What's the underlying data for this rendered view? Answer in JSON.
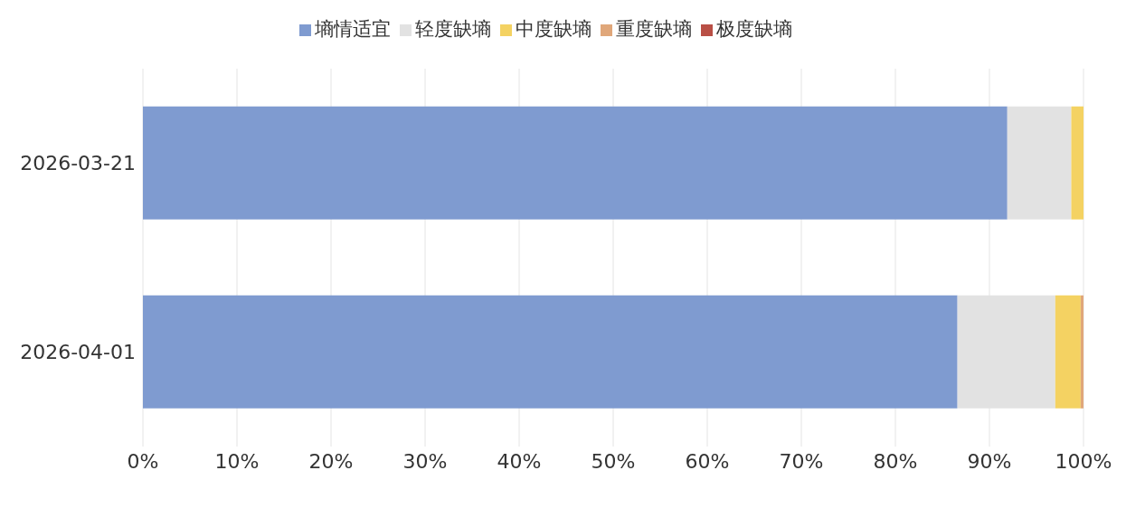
{
  "chart_data": {
    "type": "bar",
    "orientation": "horizontal",
    "stacked": true,
    "categories": [
      "2026-03-21",
      "2026-04-01"
    ],
    "series": [
      {
        "name": "墒情适宜",
        "color": "#7f9bd0",
        "values": [
          91.9,
          86.6
        ]
      },
      {
        "name": "轻度缺墒",
        "color": "#e2e2e2",
        "values": [
          6.8,
          10.4
        ]
      },
      {
        "name": "中度缺墒",
        "color": "#f4d262",
        "values": [
          1.3,
          2.7
        ]
      },
      {
        "name": "重度缺墒",
        "color": "#e0a77a",
        "values": [
          0,
          0.3
        ]
      },
      {
        "name": "极度缺墒",
        "color": "#b94f45",
        "values": [
          0,
          0
        ]
      }
    ],
    "xlim": [
      0,
      100
    ],
    "xticks": [
      {
        "value": 0,
        "label": "0%"
      },
      {
        "value": 10,
        "label": "10%"
      },
      {
        "value": 20,
        "label": "20%"
      },
      {
        "value": 30,
        "label": "30%"
      },
      {
        "value": 40,
        "label": "40%"
      },
      {
        "value": 50,
        "label": "50%"
      },
      {
        "value": 60,
        "label": "60%"
      },
      {
        "value": 70,
        "label": "70%"
      },
      {
        "value": 80,
        "label": "80%"
      },
      {
        "value": 90,
        "label": "90%"
      },
      {
        "value": 100,
        "label": "100%"
      }
    ],
    "grid": "x",
    "legend": "top"
  }
}
